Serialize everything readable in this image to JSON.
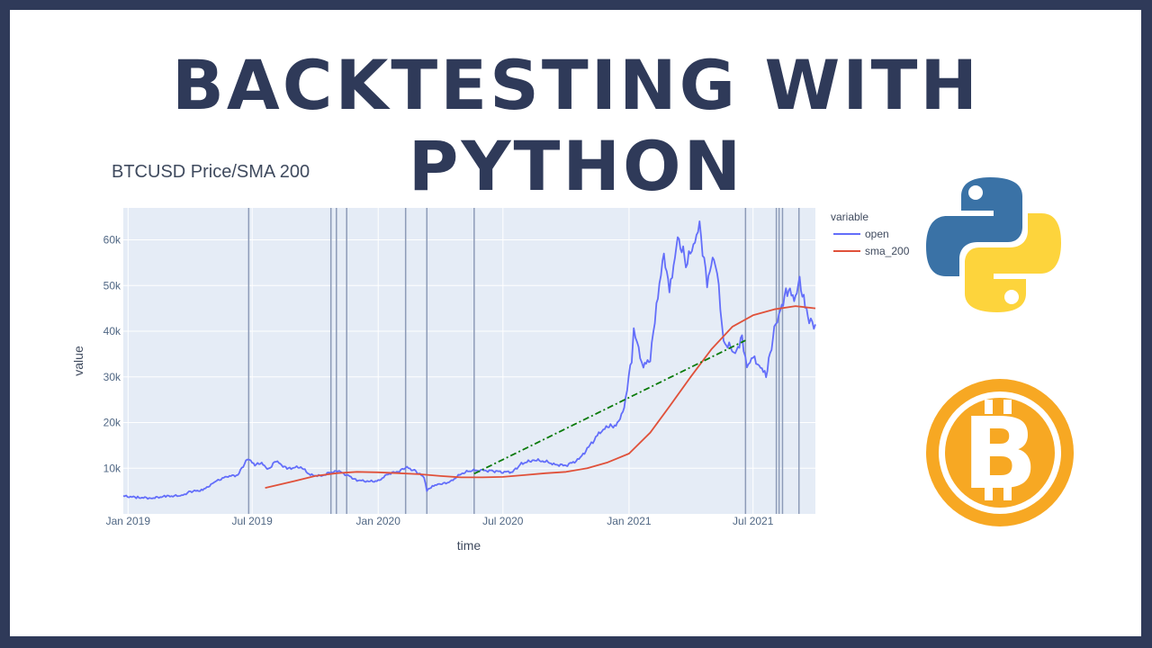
{
  "banner": {
    "headline": "BACKTESTING WITH PYTHON"
  },
  "colors": {
    "frame": "#2f3a59",
    "headline": "#2f3a59",
    "plot_bg": "#e5ecf6",
    "open": "#636efa",
    "sma_200": "#e0513a",
    "trade_line": "#0a7a0a",
    "event_lines": "#8d9bb8",
    "python_blue": "#3a72a6",
    "python_yellow": "#fdd43c",
    "bitcoin": "#f7a823"
  },
  "icons": [
    "python-logo-icon",
    "bitcoin-logo-icon"
  ],
  "chart_data": {
    "type": "line",
    "title": "BTCUSD Price/SMA 200",
    "xlabel": "time",
    "ylabel": "value",
    "legend_title": "variable",
    "legend_position": "top-right",
    "grid": true,
    "x_axis_type": "date",
    "xlim": [
      "2018-12-25",
      "2021-09-30"
    ],
    "ylim": [
      0,
      67000
    ],
    "x_ticks": [
      {
        "date": "2019-01-01",
        "label": "Jan 2019"
      },
      {
        "date": "2019-07-01",
        "label": "Jul 2019"
      },
      {
        "date": "2020-01-01",
        "label": "Jan 2020"
      },
      {
        "date": "2020-07-01",
        "label": "Jul 2020"
      },
      {
        "date": "2021-01-01",
        "label": "Jan 2021"
      },
      {
        "date": "2021-07-01",
        "label": "Jul 2021"
      }
    ],
    "y_ticks": [
      {
        "value": 10000,
        "label": "10k"
      },
      {
        "value": 20000,
        "label": "20k"
      },
      {
        "value": 30000,
        "label": "30k"
      },
      {
        "value": 40000,
        "label": "40k"
      },
      {
        "value": 50000,
        "label": "50k"
      },
      {
        "value": 60000,
        "label": "60k"
      }
    ],
    "series": [
      {
        "name": "open",
        "x": [
          "2018-12-25",
          "2019-01-15",
          "2019-02-05",
          "2019-02-25",
          "2019-03-20",
          "2019-04-02",
          "2019-04-20",
          "2019-05-10",
          "2019-05-25",
          "2019-06-10",
          "2019-06-22",
          "2019-06-27",
          "2019-07-05",
          "2019-07-15",
          "2019-07-25",
          "2019-08-05",
          "2019-08-15",
          "2019-08-25",
          "2019-09-10",
          "2019-09-24",
          "2019-10-10",
          "2019-10-25",
          "2019-11-05",
          "2019-11-20",
          "2019-12-01",
          "2019-12-18",
          "2020-01-01",
          "2020-01-15",
          "2020-02-01",
          "2020-02-12",
          "2020-02-25",
          "2020-03-08",
          "2020-03-12",
          "2020-03-20",
          "2020-04-01",
          "2020-04-15",
          "2020-05-01",
          "2020-05-15",
          "2020-06-01",
          "2020-06-15",
          "2020-07-01",
          "2020-07-15",
          "2020-07-28",
          "2020-08-15",
          "2020-09-01",
          "2020-09-15",
          "2020-10-01",
          "2020-10-20",
          "2020-11-05",
          "2020-11-20",
          "2020-12-01",
          "2020-12-15",
          "2020-12-25",
          "2021-01-05",
          "2021-01-08",
          "2021-01-15",
          "2021-01-22",
          "2021-02-01",
          "2021-02-10",
          "2021-02-21",
          "2021-03-01",
          "2021-03-13",
          "2021-03-25",
          "2021-04-05",
          "2021-04-14",
          "2021-04-25",
          "2021-05-05",
          "2021-05-12",
          "2021-05-19",
          "2021-05-25",
          "2021-06-05",
          "2021-06-15",
          "2021-06-22",
          "2021-07-01",
          "2021-07-10",
          "2021-07-20",
          "2021-08-01",
          "2021-08-10",
          "2021-08-20",
          "2021-09-01",
          "2021-09-07",
          "2021-09-15",
          "2021-09-21",
          "2021-09-30"
        ],
        "y": [
          3900,
          3600,
          3450,
          3850,
          4000,
          4900,
          5200,
          7200,
          8200,
          8500,
          11500,
          12000,
          10800,
          11000,
          9800,
          11700,
          10300,
          10000,
          10300,
          8500,
          8300,
          9200,
          9300,
          8200,
          7400,
          7100,
          7200,
          8700,
          9400,
          10200,
          9300,
          8000,
          5000,
          6200,
          6500,
          7000,
          8800,
          9500,
          9500,
          9400,
          9200,
          9200,
          11000,
          11800,
          11500,
          10800,
          10600,
          11900,
          15000,
          18000,
          19000,
          19500,
          23500,
          34000,
          40000,
          36000,
          32500,
          33500,
          46000,
          57000,
          48000,
          61000,
          55000,
          58000,
          63000,
          51000,
          56000,
          49000,
          38000,
          37000,
          35000,
          39000,
          32000,
          34000,
          33000,
          30000,
          40000,
          45000,
          49000,
          47000,
          51000,
          46000,
          42000,
          41500
        ]
      },
      {
        "name": "sma_200",
        "x": [
          "2019-07-20",
          "2019-09-01",
          "2019-10-01",
          "2019-11-01",
          "2019-12-01",
          "2020-01-01",
          "2020-02-01",
          "2020-03-01",
          "2020-04-01",
          "2020-05-01",
          "2020-06-01",
          "2020-07-01",
          "2020-08-01",
          "2020-09-01",
          "2020-10-01",
          "2020-11-01",
          "2020-12-01",
          "2021-01-01",
          "2021-02-01",
          "2021-03-01",
          "2021-04-01",
          "2021-05-01",
          "2021-06-01",
          "2021-07-01",
          "2021-08-01",
          "2021-09-01",
          "2021-09-30"
        ],
        "y": [
          5700,
          7200,
          8300,
          8900,
          9200,
          9100,
          8900,
          8700,
          8300,
          8000,
          8000,
          8100,
          8500,
          8900,
          9200,
          10000,
          11300,
          13200,
          17800,
          23500,
          30000,
          36000,
          41000,
          43500,
          44800,
          45500,
          45000
        ]
      }
    ],
    "trades": [
      {
        "style": "dash-dot",
        "x": [
          "2020-05-20",
          "2021-06-20"
        ],
        "y": [
          8800,
          38000
        ]
      }
    ],
    "event_dates": [
      "2019-06-26",
      "2019-10-24",
      "2019-11-01",
      "2019-11-16",
      "2020-02-10",
      "2020-03-12",
      "2020-05-20",
      "2021-06-20",
      "2021-08-04",
      "2021-08-08",
      "2021-08-13",
      "2021-09-06"
    ]
  }
}
